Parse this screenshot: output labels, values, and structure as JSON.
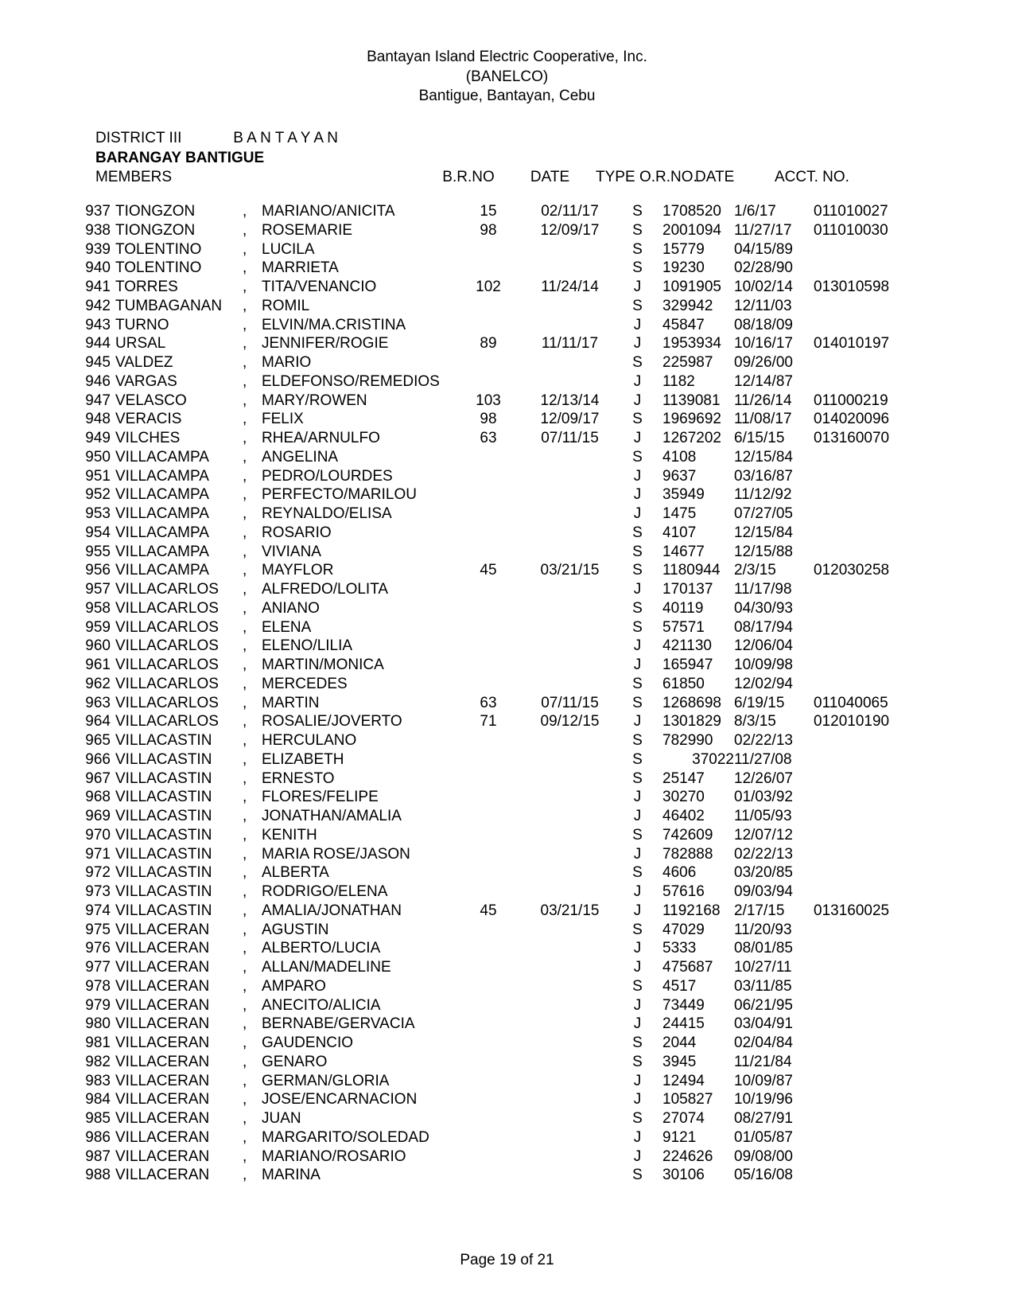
{
  "header": {
    "line1": "Bantayan Island Electric Cooperative, Inc.",
    "line2": "(BANELCO)",
    "line3": "Bantigue, Bantayan, Cebu"
  },
  "meta": {
    "district_label": "DISTRICT III",
    "district_name": "B A N T A Y A N",
    "barangay_line": "BARANGAY  BANTIGUE",
    "members_label": "MEMBERS"
  },
  "columns": {
    "brno": "B.R.NO",
    "date": "DATE",
    "type": "TYPE",
    "orno": "O.R.NO.",
    "odate": "DATE",
    "acct": "ACCT. NO."
  },
  "rows": [
    {
      "idx": "937",
      "last": "TIONGZON",
      "first": "MARIANO/ANICITA",
      "brno": "15",
      "bdate": "02/11/17",
      "type": "S",
      "orno": "1708520",
      "odate": "1/6/17",
      "acct": "011010027"
    },
    {
      "idx": "938",
      "last": "TIONGZON",
      "first": "ROSEMARIE",
      "brno": "98",
      "bdate": "12/09/17",
      "type": "S",
      "orno": "2001094",
      "odate": "11/27/17",
      "acct": "011010030"
    },
    {
      "idx": "939",
      "last": "TOLENTINO",
      "first": "LUCILA",
      "brno": "",
      "bdate": "",
      "type": "S",
      "orno": "15779",
      "odate": "04/15/89",
      "acct": ""
    },
    {
      "idx": "940",
      "last": "TOLENTINO",
      "first": "MARRIETA",
      "brno": "",
      "bdate": "",
      "type": "S",
      "orno": "19230",
      "odate": "02/28/90",
      "acct": ""
    },
    {
      "idx": "941",
      "last": "TORRES",
      "first": "TITA/VENANCIO",
      "brno": "102",
      "bdate": "11/24/14",
      "type": "J",
      "orno": "1091905",
      "odate": "10/02/14",
      "acct": "013010598"
    },
    {
      "idx": "942",
      "last": "TUMBAGANAN",
      "first": "ROMIL",
      "brno": "",
      "bdate": "",
      "type": "S",
      "orno": "329942",
      "odate": "12/11/03",
      "acct": ""
    },
    {
      "idx": "943",
      "last": "TURNO",
      "first": "ELVIN/MA.CRISTINA",
      "brno": "",
      "bdate": "",
      "type": "J",
      "orno": "45847",
      "odate": "08/18/09",
      "acct": ""
    },
    {
      "idx": "944",
      "last": "URSAL",
      "first": "JENNIFER/ROGIE",
      "brno": "89",
      "bdate": "11/11/17",
      "type": "J",
      "orno": "1953934",
      "odate": "10/16/17",
      "acct": "014010197"
    },
    {
      "idx": "945",
      "last": "VALDEZ",
      "first": "MARIO",
      "brno": "",
      "bdate": "",
      "type": "S",
      "orno": "225987",
      "odate": "09/26/00",
      "acct": ""
    },
    {
      "idx": "946",
      "last": "VARGAS",
      "first": "ELDEFONSO/REMEDIOS",
      "brno": "",
      "bdate": "",
      "type": "J",
      "orno": "1182",
      "odate": "12/14/87",
      "acct": ""
    },
    {
      "idx": "947",
      "last": "VELASCO",
      "first": "MARY/ROWEN",
      "brno": "103",
      "bdate": "12/13/14",
      "type": "J",
      "orno": "1139081",
      "odate": "11/26/14",
      "acct": "011000219"
    },
    {
      "idx": "948",
      "last": "VERACIS",
      "first": "FELIX",
      "brno": "98",
      "bdate": "12/09/17",
      "type": "S",
      "orno": "1969692",
      "odate": "11/08/17",
      "acct": "014020096"
    },
    {
      "idx": "949",
      "last": "VILCHES",
      "first": "RHEA/ARNULFO",
      "brno": "63",
      "bdate": "07/11/15",
      "type": "J",
      "orno": "1267202",
      "odate": "6/15/15",
      "acct": "013160070"
    },
    {
      "idx": "950",
      "last": "VILLACAMPA",
      "first": "ANGELINA",
      "brno": "",
      "bdate": "",
      "type": "S",
      "orno": "4108",
      "odate": "12/15/84",
      "acct": ""
    },
    {
      "idx": "951",
      "last": "VILLACAMPA",
      "first": "PEDRO/LOURDES",
      "brno": "",
      "bdate": "",
      "type": "J",
      "orno": "9637",
      "odate": "03/16/87",
      "acct": ""
    },
    {
      "idx": "952",
      "last": "VILLACAMPA",
      "first": "PERFECTO/MARILOU",
      "brno": "",
      "bdate": "",
      "type": "J",
      "orno": "35949",
      "odate": "11/12/92",
      "acct": ""
    },
    {
      "idx": "953",
      "last": "VILLACAMPA",
      "first": "REYNALDO/ELISA",
      "brno": "",
      "bdate": "",
      "type": "J",
      "orno": "1475",
      "odate": "07/27/05",
      "acct": ""
    },
    {
      "idx": "954",
      "last": "VILLACAMPA",
      "first": "ROSARIO",
      "brno": "",
      "bdate": "",
      "type": "S",
      "orno": "4107",
      "odate": "12/15/84",
      "acct": ""
    },
    {
      "idx": "955",
      "last": "VILLACAMPA",
      "first": "VIVIANA",
      "brno": "",
      "bdate": "",
      "type": "S",
      "orno": "14677",
      "odate": "12/15/88",
      "acct": ""
    },
    {
      "idx": "956",
      "last": "VILLACAMPA",
      "first": "MAYFLOR",
      "brno": "45",
      "bdate": "03/21/15",
      "type": "S",
      "orno": "1180944",
      "odate": "2/3/15",
      "acct": "012030258"
    },
    {
      "idx": "957",
      "last": "VILLACARLOS",
      "first": "ALFREDO/LOLITA",
      "brno": "",
      "bdate": "",
      "type": "J",
      "orno": "170137",
      "odate": "11/17/98",
      "acct": ""
    },
    {
      "idx": "958",
      "last": "VILLACARLOS",
      "first": "ANIANO",
      "brno": "",
      "bdate": "",
      "type": "S",
      "orno": "40119",
      "odate": "04/30/93",
      "acct": ""
    },
    {
      "idx": "959",
      "last": "VILLACARLOS",
      "first": "ELENA",
      "brno": "",
      "bdate": "",
      "type": "S",
      "orno": "57571",
      "odate": "08/17/94",
      "acct": ""
    },
    {
      "idx": "960",
      "last": "VILLACARLOS",
      "first": "ELENO/LILIA",
      "brno": "",
      "bdate": "",
      "type": "J",
      "orno": "421130",
      "odate": "12/06/04",
      "acct": ""
    },
    {
      "idx": "961",
      "last": "VILLACARLOS",
      "first": "MARTIN/MONICA",
      "brno": "",
      "bdate": "",
      "type": "J",
      "orno": "165947",
      "odate": "10/09/98",
      "acct": ""
    },
    {
      "idx": "962",
      "last": "VILLACARLOS",
      "first": "MERCEDES",
      "brno": "",
      "bdate": "",
      "type": "S",
      "orno": "61850",
      "odate": "12/02/94",
      "acct": ""
    },
    {
      "idx": "963",
      "last": "VILLACARLOS",
      "first": "MARTIN",
      "brno": "63",
      "bdate": "07/11/15",
      "type": "S",
      "orno": "1268698",
      "odate": "6/19/15",
      "acct": "011040065"
    },
    {
      "idx": "964",
      "last": "VILLACARLOS",
      "first": "ROSALIE/JOVERTO",
      "brno": "71",
      "bdate": "09/12/15",
      "type": "J",
      "orno": "1301829",
      "odate": "8/3/15",
      "acct": "012010190"
    },
    {
      "idx": "965",
      "last": "VILLACASTIN",
      "first": "HERCULANO",
      "brno": "",
      "bdate": "",
      "type": "S",
      "orno": "782990",
      "odate": "02/22/13",
      "acct": ""
    },
    {
      "idx": "966",
      "last": "VILLACASTIN",
      "first": "ELIZABETH",
      "brno": "",
      "bdate": "",
      "type": "S",
      "orno": "37022",
      "odate": "11/27/08",
      "acct": "",
      "orno_right": true
    },
    {
      "idx": "967",
      "last": "VILLACASTIN",
      "first": "ERNESTO",
      "brno": "",
      "bdate": "",
      "type": "S",
      "orno": "25147",
      "odate": "12/26/07",
      "acct": ""
    },
    {
      "idx": "968",
      "last": "VILLACASTIN",
      "first": "FLORES/FELIPE",
      "brno": "",
      "bdate": "",
      "type": "J",
      "orno": "30270",
      "odate": "01/03/92",
      "acct": ""
    },
    {
      "idx": "969",
      "last": "VILLACASTIN",
      "first": "JONATHAN/AMALIA",
      "brno": "",
      "bdate": "",
      "type": "J",
      "orno": "46402",
      "odate": "11/05/93",
      "acct": ""
    },
    {
      "idx": "970",
      "last": "VILLACASTIN",
      "first": "KENITH",
      "brno": "",
      "bdate": "",
      "type": "S",
      "orno": "742609",
      "odate": "12/07/12",
      "acct": ""
    },
    {
      "idx": "971",
      "last": "VILLACASTIN",
      "first": "MARIA ROSE/JASON",
      "brno": "",
      "bdate": "",
      "type": "J",
      "orno": "782888",
      "odate": "02/22/13",
      "acct": ""
    },
    {
      "idx": "972",
      "last": "VILLACASTIN",
      "first": "ALBERTA",
      "brno": "",
      "bdate": "",
      "type": "S",
      "orno": "4606",
      "odate": "03/20/85",
      "acct": ""
    },
    {
      "idx": "973",
      "last": "VILLACASTIN",
      "first": "RODRIGO/ELENA",
      "brno": "",
      "bdate": "",
      "type": "J",
      "orno": "57616",
      "odate": "09/03/94",
      "acct": ""
    },
    {
      "idx": "974",
      "last": "VILLACASTIN",
      "first": "AMALIA/JONATHAN",
      "brno": "45",
      "bdate": "03/21/15",
      "type": "J",
      "orno": "1192168",
      "odate": "2/17/15",
      "acct": "013160025"
    },
    {
      "idx": "975",
      "last": "VILLACERAN",
      "first": "AGUSTIN",
      "brno": "",
      "bdate": "",
      "type": "S",
      "orno": "47029",
      "odate": "11/20/93",
      "acct": ""
    },
    {
      "idx": "976",
      "last": "VILLACERAN",
      "first": "ALBERTO/LUCIA",
      "brno": "",
      "bdate": "",
      "type": "J",
      "orno": "5333",
      "odate": "08/01/85",
      "acct": ""
    },
    {
      "idx": "977",
      "last": "VILLACERAN",
      "first": "ALLAN/MADELINE",
      "brno": "",
      "bdate": "",
      "type": "J",
      "orno": "475687",
      "odate": "10/27/11",
      "acct": ""
    },
    {
      "idx": "978",
      "last": "VILLACERAN",
      "first": "AMPARO",
      "brno": "",
      "bdate": "",
      "type": "S",
      "orno": "4517",
      "odate": "03/11/85",
      "acct": ""
    },
    {
      "idx": "979",
      "last": "VILLACERAN",
      "first": "ANECITO/ALICIA",
      "brno": "",
      "bdate": "",
      "type": "J",
      "orno": "73449",
      "odate": "06/21/95",
      "acct": ""
    },
    {
      "idx": "980",
      "last": "VILLACERAN",
      "first": "BERNABE/GERVACIA",
      "brno": "",
      "bdate": "",
      "type": "J",
      "orno": "24415",
      "odate": "03/04/91",
      "acct": ""
    },
    {
      "idx": "981",
      "last": "VILLACERAN",
      "first": "GAUDENCIO",
      "brno": "",
      "bdate": "",
      "type": "S",
      "orno": "2044",
      "odate": "02/04/84",
      "acct": ""
    },
    {
      "idx": "982",
      "last": "VILLACERAN",
      "first": "GENARO",
      "brno": "",
      "bdate": "",
      "type": "S",
      "orno": "3945",
      "odate": "11/21/84",
      "acct": ""
    },
    {
      "idx": "983",
      "last": "VILLACERAN",
      "first": "GERMAN/GLORIA",
      "brno": "",
      "bdate": "",
      "type": "J",
      "orno": "12494",
      "odate": "10/09/87",
      "acct": ""
    },
    {
      "idx": "984",
      "last": "VILLACERAN",
      "first": "JOSE/ENCARNACION",
      "brno": "",
      "bdate": "",
      "type": "J",
      "orno": "105827",
      "odate": "10/19/96",
      "acct": ""
    },
    {
      "idx": "985",
      "last": "VILLACERAN",
      "first": "JUAN",
      "brno": "",
      "bdate": "",
      "type": "S",
      "orno": "27074",
      "odate": "08/27/91",
      "acct": ""
    },
    {
      "idx": "986",
      "last": "VILLACERAN",
      "first": "MARGARITO/SOLEDAD",
      "brno": "",
      "bdate": "",
      "type": "J",
      "orno": "9121",
      "odate": "01/05/87",
      "acct": ""
    },
    {
      "idx": "987",
      "last": "VILLACERAN",
      "first": "MARIANO/ROSARIO",
      "brno": "",
      "bdate": "",
      "type": "J",
      "orno": "224626",
      "odate": "09/08/00",
      "acct": ""
    },
    {
      "idx": "988",
      "last": "VILLACERAN",
      "first": "MARINA",
      "brno": "",
      "bdate": "",
      "type": "S",
      "orno": "30106",
      "odate": "05/16/08",
      "acct": ""
    }
  ],
  "footer": "Page 19 of 21"
}
